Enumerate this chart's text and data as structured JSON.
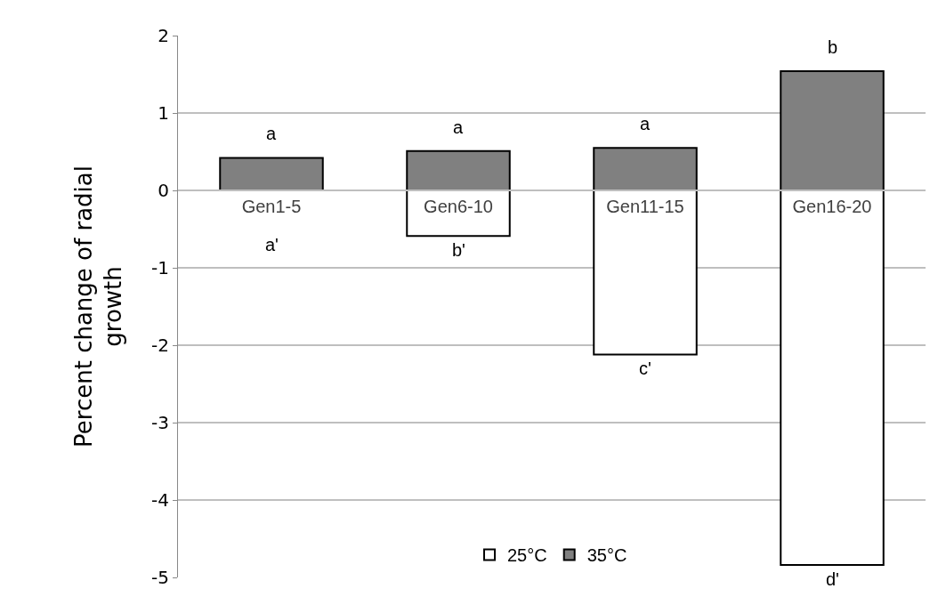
{
  "chart_data": {
    "type": "bar",
    "ylabel": "Percent change of radial growth",
    "stacked": true,
    "categories": [
      "Gen1-5",
      "Gen6-10",
      "Gen11-15",
      "Gen16-20"
    ],
    "series": [
      {
        "name": "25°C",
        "color": "#ffffff",
        "values": [
          null,
          -0.59,
          -2.12,
          -4.84
        ],
        "value_labels": [
          "a'",
          "b'",
          "c'",
          "d'"
        ]
      },
      {
        "name": "35°C",
        "color": "#808080",
        "values": [
          0.42,
          0.51,
          0.55,
          1.54
        ],
        "value_labels": [
          "a",
          "a",
          "a",
          "b"
        ]
      }
    ],
    "ylim": [
      -5,
      2
    ],
    "yticks": [
      -5,
      -4,
      -3,
      -2,
      -1,
      0,
      1,
      2
    ],
    "grid": "y",
    "legend": "bottom"
  }
}
